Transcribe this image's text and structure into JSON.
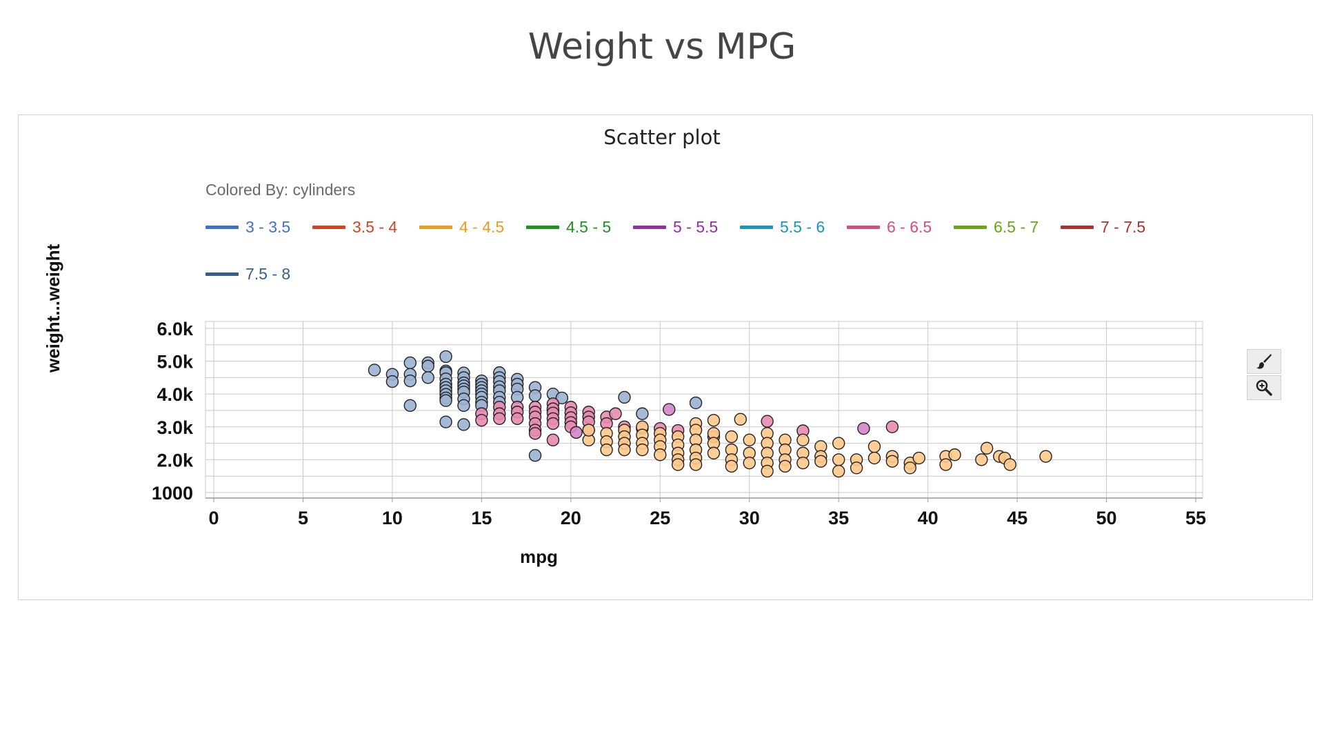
{
  "page": {
    "title": "Weight vs MPG"
  },
  "toolbar": {
    "tools": [
      {
        "icon": "brush-icon"
      },
      {
        "icon": "zoom-icon"
      }
    ]
  },
  "chart_data": {
    "type": "scatter",
    "title": "Scatter plot",
    "xlabel": "mpg",
    "ylabel": "weight...weight",
    "legend_title": "Colored By: cylinders",
    "legend_placement": "top",
    "xlim": [
      0,
      55
    ],
    "ylim": [
      1000,
      6000
    ],
    "xticks": [
      "0",
      "5",
      "10",
      "15",
      "20",
      "25",
      "30",
      "35",
      "40",
      "45",
      "50",
      "55"
    ],
    "yticks": [
      "1000",
      "2.0k",
      "3.0k",
      "4.0k",
      "5.0k",
      "6.0k"
    ],
    "grid": true,
    "legend": [
      {
        "label": "3 - 3.5",
        "color": "#3f6fd1"
      },
      {
        "label": "3.5 - 4",
        "color": "#dc3f1f"
      },
      {
        "label": "4 - 4.5",
        "color": "#f5991c"
      },
      {
        "label": "4.5 - 5",
        "color": "#1a961a"
      },
      {
        "label": "5 - 5.5",
        "color": "#9b2aa6"
      },
      {
        "label": "5.5 - 6",
        "color": "#1596c4"
      },
      {
        "label": "6 - 6.5",
        "color": "#dc4b7a"
      },
      {
        "label": "6.5 - 7",
        "color": "#67a614"
      },
      {
        "label": "7 - 7.5",
        "color": "#b62d2d"
      },
      {
        "label": "7.5 - 8",
        "color": "#355e92"
      }
    ],
    "point_colors": {
      "4 - 4.5": "#ffc98a",
      "6 - 6.5": "#e88bb0",
      "7.5 - 8": "#9bb3d3",
      "5 - 5.5": "#d585c9"
    },
    "series": [
      {
        "group": "7.5 - 8",
        "points": [
          [
            9,
            4730
          ],
          [
            10,
            4600
          ],
          [
            10,
            4380
          ],
          [
            11,
            4950
          ],
          [
            11,
            4600
          ],
          [
            11,
            4400
          ],
          [
            11,
            3650
          ],
          [
            12,
            4950
          ],
          [
            12,
            4850
          ],
          [
            12,
            4500
          ],
          [
            13,
            5140
          ],
          [
            13,
            4700
          ],
          [
            13,
            4650
          ],
          [
            13,
            4460
          ],
          [
            13,
            4300
          ],
          [
            13,
            4200
          ],
          [
            13,
            4100
          ],
          [
            13,
            3990
          ],
          [
            13,
            3880
          ],
          [
            13,
            3800
          ],
          [
            13,
            3150
          ],
          [
            14,
            4640
          ],
          [
            14,
            4500
          ],
          [
            14,
            4340
          ],
          [
            14,
            4250
          ],
          [
            14,
            4150
          ],
          [
            14,
            4060
          ],
          [
            14,
            3850
          ],
          [
            14,
            3650
          ],
          [
            14,
            3070
          ],
          [
            15,
            4400
          ],
          [
            15,
            4300
          ],
          [
            15,
            4200
          ],
          [
            15,
            4100
          ],
          [
            15,
            4000
          ],
          [
            15,
            3900
          ],
          [
            15,
            3750
          ],
          [
            15,
            3650
          ],
          [
            16,
            4650
          ],
          [
            16,
            4500
          ],
          [
            16,
            4380
          ],
          [
            16,
            4220
          ],
          [
            16,
            4100
          ],
          [
            16,
            3900
          ],
          [
            16,
            3750
          ],
          [
            17,
            4450
          ],
          [
            17,
            4300
          ],
          [
            17,
            4150
          ],
          [
            17,
            3900
          ],
          [
            18,
            4200
          ],
          [
            18,
            3950
          ],
          [
            18,
            2130
          ],
          [
            19,
            4000
          ],
          [
            19,
            3500
          ],
          [
            23,
            3900
          ],
          [
            24,
            3400
          ],
          [
            27,
            3730
          ],
          [
            19.5,
            3880
          ]
        ]
      },
      {
        "group": "6 - 6.5",
        "points": [
          [
            15,
            3400
          ],
          [
            15,
            3200
          ],
          [
            16,
            3600
          ],
          [
            16,
            3400
          ],
          [
            16,
            3250
          ],
          [
            17,
            3600
          ],
          [
            17,
            3450
          ],
          [
            17,
            3250
          ],
          [
            18,
            3600
          ],
          [
            18,
            3450
          ],
          [
            18,
            3300
          ],
          [
            18,
            3100
          ],
          [
            18,
            2900
          ],
          [
            18,
            2800
          ],
          [
            19,
            3700
          ],
          [
            19,
            3550
          ],
          [
            19,
            3420
          ],
          [
            19,
            3250
          ],
          [
            19,
            3100
          ],
          [
            20,
            3600
          ],
          [
            20,
            3430
          ],
          [
            20,
            3280
          ],
          [
            20,
            3130
          ],
          [
            20,
            3000
          ],
          [
            21,
            3450
          ],
          [
            21,
            3300
          ],
          [
            21,
            3150
          ],
          [
            21,
            2900
          ],
          [
            22,
            3300
          ],
          [
            22,
            3100
          ],
          [
            22.5,
            3400
          ],
          [
            23,
            3000
          ],
          [
            24,
            2950
          ],
          [
            25,
            2950
          ],
          [
            26,
            2890
          ],
          [
            28,
            2700
          ],
          [
            31,
            3170
          ],
          [
            33,
            2880
          ],
          [
            38,
            3000
          ],
          [
            19,
            2600
          ]
        ]
      },
      {
        "group": "5 - 5.5",
        "points": [
          [
            25.5,
            3530
          ],
          [
            36.4,
            2950
          ],
          [
            20.3,
            2830
          ]
        ]
      },
      {
        "group": "4 - 4.5",
        "points": [
          [
            21,
            2600
          ],
          [
            21,
            2900
          ],
          [
            22,
            2800
          ],
          [
            22,
            2550
          ],
          [
            22,
            2300
          ],
          [
            23,
            2900
          ],
          [
            23,
            2700
          ],
          [
            23,
            2500
          ],
          [
            23,
            2300
          ],
          [
            24,
            3000
          ],
          [
            24,
            2750
          ],
          [
            24,
            2500
          ],
          [
            24,
            2300
          ],
          [
            25,
            2800
          ],
          [
            25,
            2600
          ],
          [
            25,
            2400
          ],
          [
            25,
            2150
          ],
          [
            26,
            2700
          ],
          [
            26,
            2450
          ],
          [
            26,
            2200
          ],
          [
            26,
            2000
          ],
          [
            26,
            1850
          ],
          [
            27,
            3100
          ],
          [
            27,
            2900
          ],
          [
            27,
            2600
          ],
          [
            27,
            2300
          ],
          [
            27,
            2050
          ],
          [
            27,
            1850
          ],
          [
            28,
            3200
          ],
          [
            28,
            2800
          ],
          [
            28,
            2500
          ],
          [
            28,
            2200
          ],
          [
            29,
            2700
          ],
          [
            29,
            2300
          ],
          [
            29,
            2000
          ],
          [
            29,
            1800
          ],
          [
            29.5,
            3230
          ],
          [
            30,
            2600
          ],
          [
            30,
            2200
          ],
          [
            30,
            1900
          ],
          [
            31,
            2800
          ],
          [
            31,
            2500
          ],
          [
            31,
            2200
          ],
          [
            31,
            1900
          ],
          [
            31,
            1650
          ],
          [
            32,
            2600
          ],
          [
            32,
            2300
          ],
          [
            32,
            2000
          ],
          [
            32,
            1800
          ],
          [
            33,
            2600
          ],
          [
            33,
            2200
          ],
          [
            33,
            1900
          ],
          [
            34,
            2400
          ],
          [
            34,
            2100
          ],
          [
            34,
            1950
          ],
          [
            35,
            2500
          ],
          [
            35,
            2000
          ],
          [
            35,
            1650
          ],
          [
            36,
            2000
          ],
          [
            36,
            1750
          ],
          [
            37,
            2400
          ],
          [
            37,
            2050
          ],
          [
            38,
            2100
          ],
          [
            38,
            1950
          ],
          [
            39,
            1900
          ],
          [
            39,
            1750
          ],
          [
            39.5,
            2050
          ],
          [
            41,
            2100
          ],
          [
            41,
            1850
          ],
          [
            41.5,
            2150
          ],
          [
            43,
            2000
          ],
          [
            43.3,
            2350
          ],
          [
            44,
            2100
          ],
          [
            44.3,
            2050
          ],
          [
            44.6,
            1850
          ],
          [
            46.6,
            2100
          ]
        ]
      }
    ]
  }
}
